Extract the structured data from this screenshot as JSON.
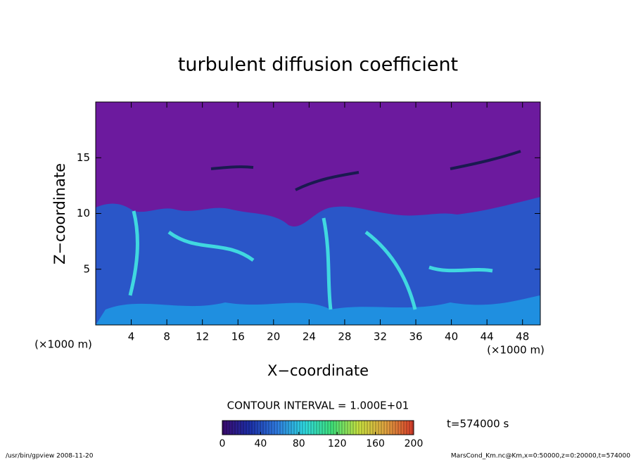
{
  "chart_data": {
    "type": "contour",
    "title": "turbulent diffusion coefficient",
    "x_label": "X−coordinate",
    "y_label": "Z−coordinate",
    "x_unit_label": "(×1000 m)",
    "xlim": [
      0,
      50
    ],
    "xticks": [
      4,
      8,
      12,
      16,
      20,
      24,
      28,
      32,
      36,
      40,
      44,
      48
    ],
    "ylim": [
      0,
      20
    ],
    "yticks": [
      5,
      10,
      15
    ],
    "colorbar": {
      "lim": [
        0,
        200
      ],
      "ticks": [
        0,
        40,
        80,
        120,
        160,
        200
      ],
      "colors": [
        "#3b0a6e",
        "#1c2fa8",
        "#2f7be0",
        "#2fd8e0",
        "#3ee07a",
        "#c8e040",
        "#e0a040",
        "#d83a2a"
      ]
    },
    "contour_interval_label": "CONTOUR INTERVAL = 1.000E+01",
    "time_label": "t=574000 s",
    "footer_left": "/usr/bin/gpview   2008-11-20",
    "footer_right": "MarsCond_Km.nc@Km,x=0:50000,z=0:20000,t=574000"
  }
}
